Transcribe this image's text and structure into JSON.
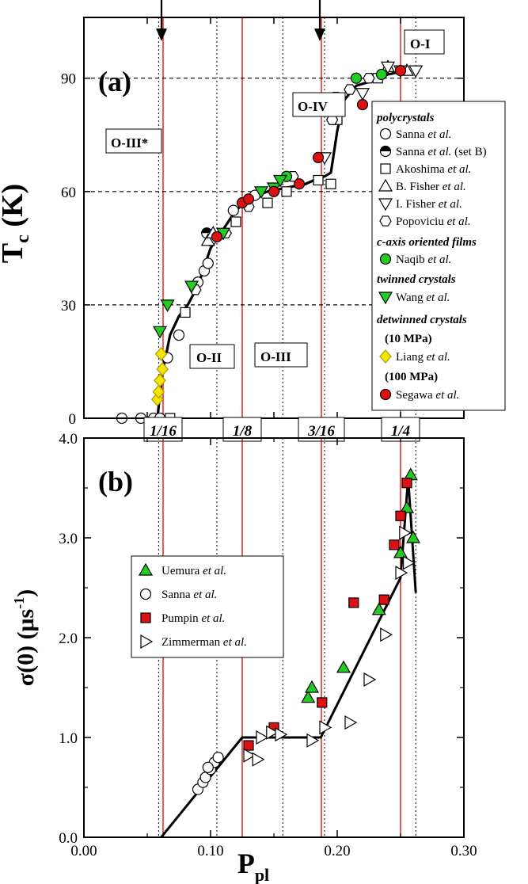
{
  "chart_data": [
    {
      "type": "scatter",
      "panel_label": "(a)",
      "ylabel_main": "T",
      "ylabel_sub": "c",
      "ylabel_unit": " (K)",
      "xlim": [
        0.0,
        0.3
      ],
      "ylim": [
        0,
        100
      ],
      "y_ticks": [
        0,
        30,
        60,
        90
      ],
      "dashed_hlines": [
        30,
        60,
        90
      ],
      "phase_labels": [
        "O-III*",
        "O-II",
        "O-III",
        "O-IV",
        "O-I"
      ],
      "legend_groups": [
        "polycrystals",
        "c-axis oriented films",
        "twinned crystals",
        "detwinned crystals"
      ],
      "legend_notes": [
        "(10 MPa)",
        "(100 MPa)"
      ],
      "legend_lines": [
        {
          "prefix": "Sanna ",
          "italic": "et al.",
          "suffix": ""
        },
        {
          "prefix": "Sanna ",
          "italic": "et al.",
          "suffix": " (set B)"
        },
        {
          "prefix": "Akoshima ",
          "italic": "et al.",
          "suffix": ""
        },
        {
          "prefix": "B. Fisher ",
          "italic": "et al.",
          "suffix": ""
        },
        {
          "prefix": "I. Fisher ",
          "italic": "et al.",
          "suffix": ""
        },
        {
          "prefix": "Popoviciu ",
          "italic": "et al.",
          "suffix": ""
        },
        {
          "prefix": "Naqib ",
          "italic": "et al.",
          "suffix": ""
        },
        {
          "prefix": "Wang ",
          "italic": "et al.",
          "suffix": ""
        },
        {
          "prefix": "Liang ",
          "italic": "et al.",
          "suffix": ""
        },
        {
          "prefix": "Segawa ",
          "italic": "et al.",
          "suffix": ""
        }
      ],
      "series": [
        {
          "marker": "circle-open",
          "points": [
            [
              0.03,
              0
            ],
            [
              0.045,
              0
            ],
            [
              0.055,
              0
            ],
            [
              0.06,
              0
            ],
            [
              0.066,
              16
            ],
            [
              0.075,
              22
            ],
            [
              0.09,
              36
            ],
            [
              0.095,
              39
            ],
            [
              0.098,
              41
            ],
            [
              0.1,
              47
            ],
            [
              0.118,
              55
            ],
            [
              0.135,
              59
            ]
          ]
        },
        {
          "marker": "circle-half",
          "points": [
            [
              0.097,
              49
            ]
          ]
        },
        {
          "marker": "square-open",
          "points": [
            [
              0.068,
              0
            ],
            [
              0.08,
              28
            ],
            [
              0.12,
              52
            ],
            [
              0.145,
              57
            ],
            [
              0.16,
              60
            ],
            [
              0.185,
              63
            ],
            [
              0.195,
              62
            ],
            [
              0.2,
              79
            ],
            [
              0.232,
              90
            ]
          ]
        },
        {
          "marker": "triangle-up-open",
          "points": [
            [
              0.098,
              47
            ],
            [
              0.102,
              49
            ],
            [
              0.24,
              93
            ],
            [
              0.255,
              92
            ]
          ]
        },
        {
          "marker": "triangle-down-open",
          "points": [
            [
              0.19,
              69
            ],
            [
              0.22,
              86
            ],
            [
              0.24,
              93
            ],
            [
              0.25,
              92
            ],
            [
              0.262,
              92
            ]
          ]
        },
        {
          "marker": "hexagon-open",
          "points": [
            [
              0.088,
              34
            ],
            [
              0.112,
              49
            ],
            [
              0.13,
              56
            ],
            [
              0.165,
              64
            ],
            [
              0.196,
              79
            ],
            [
              0.199,
              85
            ],
            [
              0.21,
              87
            ],
            [
              0.225,
              90
            ]
          ]
        },
        {
          "marker": "circle-green",
          "points": [
            [
              0.16,
              64
            ],
            [
              0.215,
              90
            ],
            [
              0.235,
              91
            ]
          ]
        },
        {
          "marker": "triangle-down-green",
          "points": [
            [
              0.06,
              23
            ],
            [
              0.066,
              30
            ],
            [
              0.085,
              35
            ],
            [
              0.11,
              49
            ],
            [
              0.14,
              60
            ],
            [
              0.15,
              61
            ],
            [
              0.155,
              63
            ]
          ]
        },
        {
          "marker": "diamond-yellow",
          "points": [
            [
              0.058,
              5
            ],
            [
              0.059,
              7
            ],
            [
              0.06,
              10
            ],
            [
              0.061,
              17
            ],
            [
              0.062,
              13
            ]
          ]
        },
        {
          "marker": "circle-red",
          "points": [
            [
              0.105,
              48
            ],
            [
              0.125,
              57
            ],
            [
              0.13,
              58
            ],
            [
              0.15,
              60
            ],
            [
              0.17,
              62
            ],
            [
              0.185,
              69
            ],
            [
              0.22,
              83
            ],
            [
              0.25,
              92
            ]
          ]
        }
      ],
      "fit_curve": [
        [
          0.058,
          0
        ],
        [
          0.062,
          12
        ],
        [
          0.068,
          22
        ],
        [
          0.075,
          27
        ],
        [
          0.082,
          30
        ],
        [
          0.09,
          35
        ],
        [
          0.1,
          45
        ],
        [
          0.11,
          50
        ],
        [
          0.12,
          55
        ],
        [
          0.13,
          58
        ],
        [
          0.145,
          60
        ],
        [
          0.16,
          61
        ],
        [
          0.175,
          62
        ],
        [
          0.185,
          63.5
        ],
        [
          0.19,
          64
        ],
        [
          0.195,
          65
        ],
        [
          0.2,
          76
        ],
        [
          0.205,
          84
        ],
        [
          0.215,
          88
        ],
        [
          0.225,
          89
        ],
        [
          0.24,
          91
        ],
        [
          0.255,
          92
        ]
      ]
    },
    {
      "type": "scatter",
      "panel_label": "(b)",
      "xlabel_main": "P",
      "xlabel_sub": "pl",
      "ylabel_main": "σ(0) (μs",
      "ylabel_sup": "-1",
      "ylabel_end": ")",
      "xlim": [
        0.0,
        0.3
      ],
      "ylim": [
        0.0,
        4.0
      ],
      "x_ticks": [
        "0.00",
        "0.10",
        "0.20",
        "0.30"
      ],
      "y_ticks": [
        "0.0",
        "1.0",
        "2.0",
        "3.0",
        "4.0"
      ],
      "legend": [
        {
          "prefix": "Uemura ",
          "italic": "et al."
        },
        {
          "prefix": "Sanna ",
          "italic": "et al."
        },
        {
          "prefix": "Pumpin ",
          "italic": "et al."
        },
        {
          "prefix": "Zimmerman ",
          "italic": "et al."
        }
      ],
      "series": [
        {
          "marker": "triangle-up-green",
          "points": [
            [
              0.177,
              1.4
            ],
            [
              0.18,
              1.5
            ],
            [
              0.205,
              1.7
            ],
            [
              0.233,
              2.28
            ],
            [
              0.25,
              2.85
            ],
            [
              0.255,
              3.3
            ],
            [
              0.258,
              3.63
            ],
            [
              0.26,
              3.0
            ]
          ]
        },
        {
          "marker": "circle-open",
          "points": [
            [
              0.09,
              0.48
            ],
            [
              0.094,
              0.55
            ],
            [
              0.096,
              0.6
            ],
            [
              0.1,
              0.68
            ],
            [
              0.103,
              0.75
            ],
            [
              0.106,
              0.8
            ],
            [
              0.098,
              0.7
            ]
          ]
        },
        {
          "marker": "square-red",
          "points": [
            [
              0.13,
              0.92
            ],
            [
              0.15,
              1.1
            ],
            [
              0.188,
              1.35
            ],
            [
              0.213,
              2.35
            ],
            [
              0.237,
              2.38
            ],
            [
              0.245,
              2.93
            ],
            [
              0.25,
              3.22
            ],
            [
              0.255,
              3.55
            ]
          ]
        },
        {
          "marker": "triangle-right-open",
          "points": [
            [
              0.13,
              0.82
            ],
            [
              0.137,
              0.78
            ],
            [
              0.14,
              1.0
            ],
            [
              0.148,
              1.05
            ],
            [
              0.155,
              1.03
            ],
            [
              0.18,
              0.97
            ],
            [
              0.19,
              1.1
            ],
            [
              0.21,
              1.15
            ],
            [
              0.225,
              1.58
            ],
            [
              0.238,
              2.03
            ],
            [
              0.25,
              2.65
            ],
            [
              0.253,
              3.05
            ],
            [
              0.256,
              2.75
            ]
          ]
        }
      ],
      "fit_curve": [
        [
          0.061,
          0.0
        ],
        [
          0.125,
          1.0
        ],
        [
          0.187,
          1.0
        ],
        [
          0.25,
          2.6
        ],
        [
          0.256,
          3.6
        ],
        [
          0.262,
          2.45
        ]
      ],
      "shared_vlines_red": [
        0.0625,
        0.125,
        0.1875,
        0.25
      ],
      "shared_vlines_dotted": [
        0.059,
        0.105,
        0.157,
        0.19,
        0.262
      ]
    }
  ],
  "fraction_labels": [
    "1/16",
    "1/8",
    "3/16",
    "1/4"
  ],
  "arrow_positions_x": [
    0.0625,
    0.1875
  ]
}
